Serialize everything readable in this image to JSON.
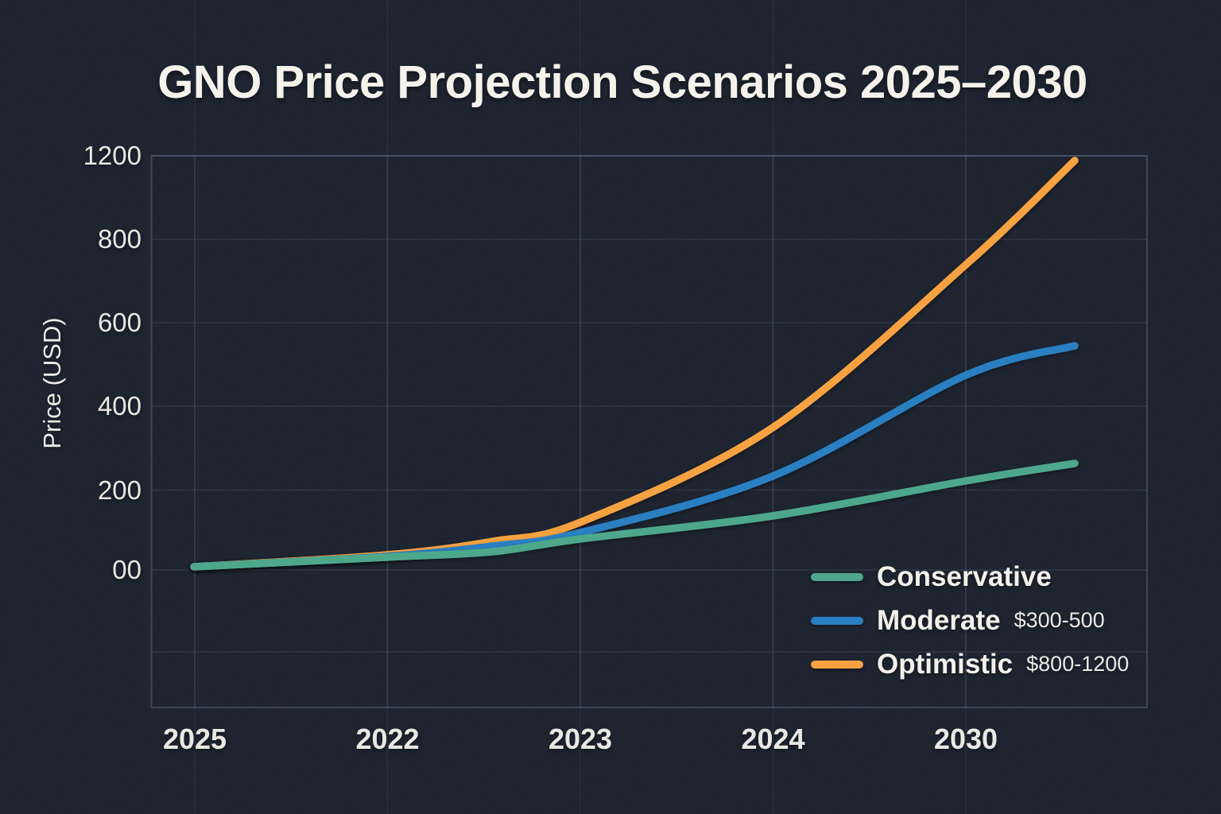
{
  "canvas": {
    "background": "#191f2b",
    "grid_color": "#39405263",
    "text_color": "#eae8e2"
  },
  "chart_data": {
    "type": "line",
    "title": "GNO Price Projection Scenarios 2025–2030",
    "xlabel": "",
    "ylabel": "Price (USD)",
    "x_tick_labels": [
      "2025",
      "2022",
      "2023",
      "2024",
      "2030"
    ],
    "y_tick_labels": [
      "00",
      "200",
      "400",
      "600",
      "800",
      "1200"
    ],
    "y_tick_values": [
      0,
      200,
      400,
      600,
      800,
      1200
    ],
    "ylim": [
      0,
      1200
    ],
    "grid": true,
    "legend_position": "inside-bottom-right",
    "series": [
      {
        "name": "Conservative",
        "range_label": "",
        "color": "#4da88b",
        "values_at_ticks": [
          5,
          30,
          80,
          130,
          220
        ],
        "end_value": 260
      },
      {
        "name": "Moderate",
        "range_label": "$300-500",
        "color": "#2a7fc2",
        "values_at_ticks": [
          5,
          30,
          90,
          230,
          475
        ],
        "end_value": 545
      },
      {
        "name": "Optimistic",
        "range_label": "$800-1200",
        "color": "#f6a242",
        "values_at_ticks": [
          5,
          35,
          115,
          345,
          735
        ],
        "end_value": 1180
      }
    ]
  }
}
